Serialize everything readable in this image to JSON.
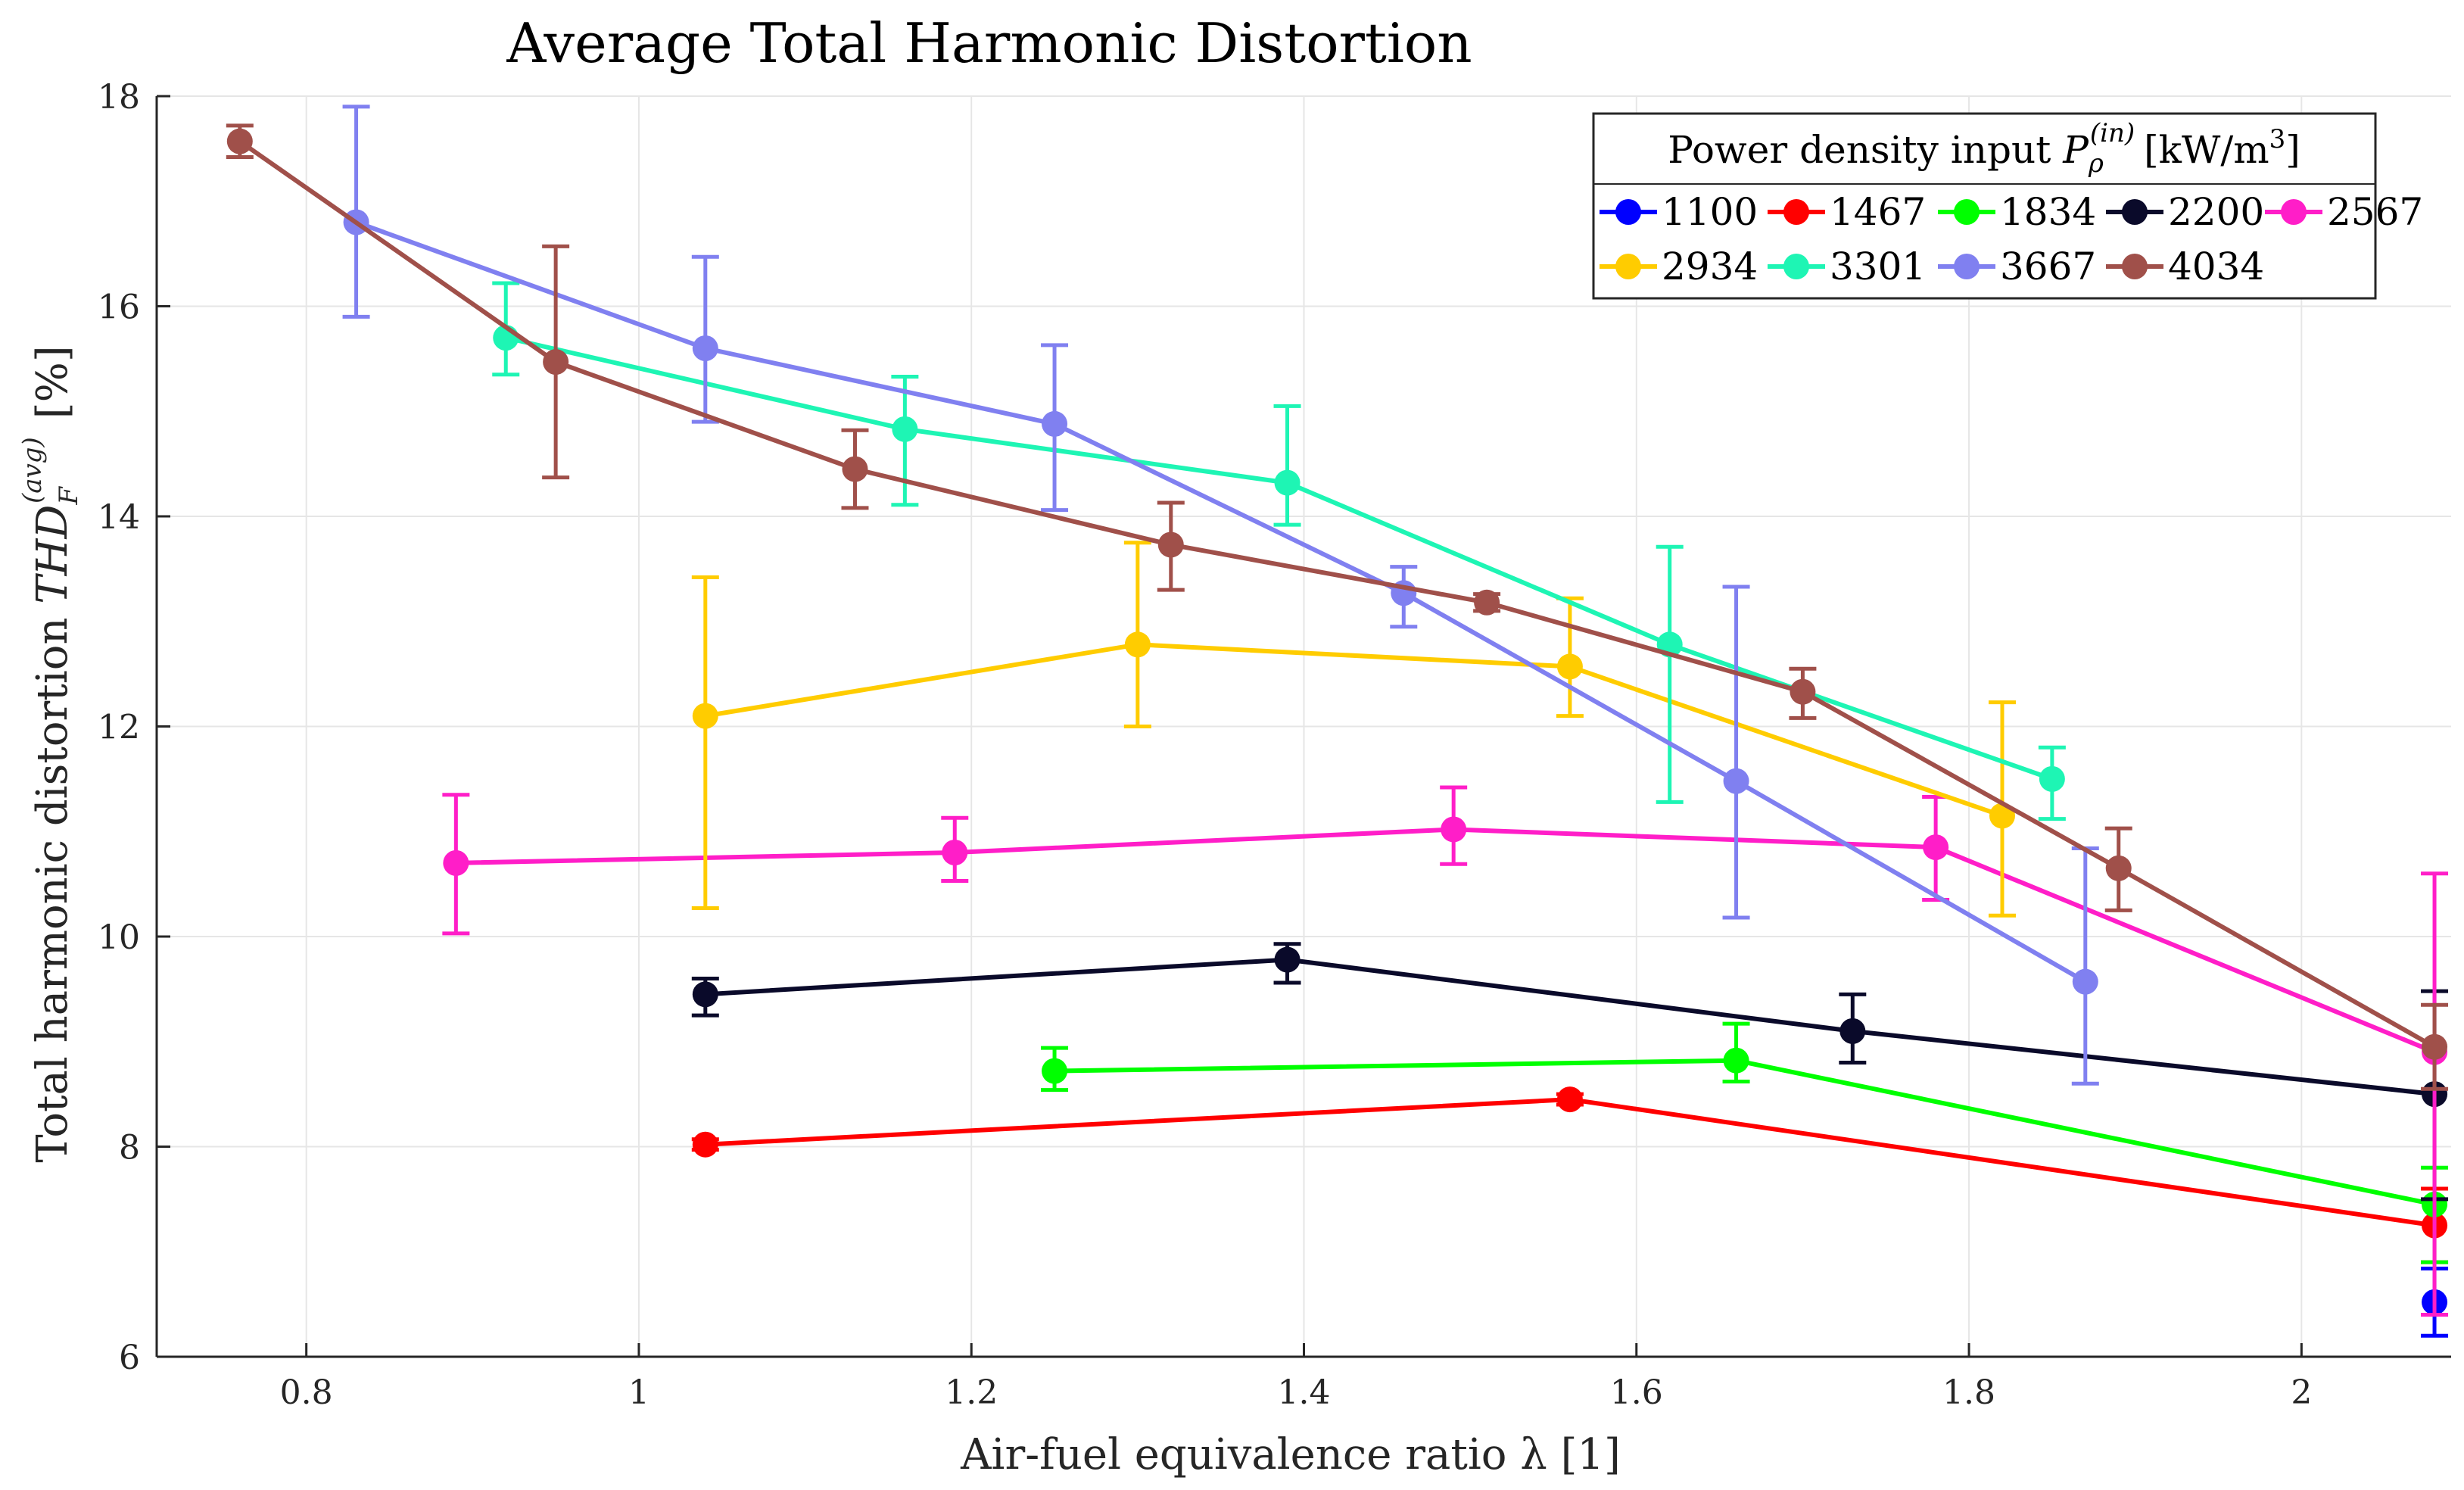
{
  "chart_data": {
    "type": "line",
    "title": "Average Total Harmonic Distortion",
    "xlabel": "Air-fuel equivalence ratio λ [1]",
    "ylabel": {
      "text": "Total harmonic distortion ",
      "symbol": "THD",
      "subscript": "F",
      "superscript": "(avg)",
      "unit": "[%]"
    },
    "xlim": [
      0.71,
      2.09
    ],
    "ylim": [
      6,
      18
    ],
    "xticks": [
      0.8,
      1,
      1.2,
      1.4,
      1.6,
      1.8,
      2
    ],
    "xtick_labels": [
      "0.8",
      "1",
      "1.2",
      "1.4",
      "1.6",
      "1.8",
      "2"
    ],
    "yticks": [
      6,
      8,
      10,
      12,
      14,
      16,
      18
    ],
    "ytick_labels": [
      "6",
      "8",
      "10",
      "12",
      "14",
      "16",
      "18"
    ],
    "grid": true,
    "legend": {
      "title": {
        "text": "Power density input ",
        "symbol": "P",
        "subscript": "ρ",
        "superscript": "(in)",
        "unit": "[kW/m",
        "unit_sup": "3",
        "unit_close": "]"
      },
      "placement": "top-right",
      "columns": 5
    },
    "series": [
      {
        "name": "1100",
        "color": "#0000ff",
        "x": [
          2.08
        ],
        "y": [
          6.52
        ],
        "err_low": [
          0.32
        ],
        "err_high": [
          0.32
        ]
      },
      {
        "name": "1467",
        "color": "#ff0000",
        "x": [
          1.04,
          1.56,
          2.08
        ],
        "y": [
          8.02,
          8.45,
          7.25
        ],
        "err_low": [
          0.05,
          0.05,
          0.35
        ],
        "err_high": [
          0.05,
          0.05,
          0.35
        ]
      },
      {
        "name": "1834",
        "color": "#00ff00",
        "x": [
          1.25,
          1.66,
          2.08
        ],
        "y": [
          8.72,
          8.82,
          7.45
        ],
        "err_low": [
          0.18,
          0.2,
          0.55
        ],
        "err_high": [
          0.22,
          0.35,
          0.35
        ]
      },
      {
        "name": "2200",
        "color": "#0a0a2a",
        "x": [
          1.04,
          1.39,
          1.73,
          2.08
        ],
        "y": [
          9.45,
          9.78,
          9.1,
          8.5
        ],
        "err_low": [
          0.2,
          0.22,
          0.3,
          1.0
        ],
        "err_high": [
          0.15,
          0.15,
          0.35,
          0.98
        ]
      },
      {
        "name": "2567",
        "color": "#ff1ec8",
        "x": [
          0.89,
          1.19,
          1.49,
          1.78,
          2.08
        ],
        "y": [
          10.7,
          10.8,
          11.02,
          10.85,
          8.9
        ],
        "err_low": [
          0.67,
          0.27,
          0.33,
          0.5,
          2.5
        ],
        "err_high": [
          0.65,
          0.33,
          0.4,
          0.48,
          1.7
        ]
      },
      {
        "name": "2934",
        "color": "#ffcc00",
        "x": [
          1.04,
          1.3,
          1.56,
          1.82
        ],
        "y": [
          12.1,
          12.78,
          12.57,
          11.15
        ],
        "err_low": [
          1.83,
          0.78,
          0.47,
          0.95
        ],
        "err_high": [
          1.32,
          0.97,
          0.65,
          1.08
        ]
      },
      {
        "name": "3301",
        "color": "#1ef5b4",
        "x": [
          0.92,
          1.16,
          1.39,
          1.62,
          1.85
        ],
        "y": [
          15.7,
          14.83,
          14.32,
          12.78,
          11.5
        ],
        "err_low": [
          0.35,
          0.72,
          0.4,
          1.5,
          0.38
        ],
        "err_high": [
          0.52,
          0.5,
          0.73,
          0.93,
          0.3
        ]
      },
      {
        "name": "3667",
        "color": "#8080f0",
        "x": [
          0.83,
          1.04,
          1.25,
          1.46,
          1.66,
          1.87
        ],
        "y": [
          16.8,
          15.6,
          14.88,
          13.27,
          11.48,
          9.57
        ],
        "err_low": [
          0.9,
          0.7,
          0.82,
          0.32,
          1.3,
          0.97
        ],
        "err_high": [
          1.1,
          0.87,
          0.75,
          0.25,
          1.85,
          1.27
        ]
      },
      {
        "name": "4034",
        "color": "#a0504a",
        "x": [
          0.76,
          0.95,
          1.13,
          1.32,
          1.51,
          1.7,
          1.89,
          2.08
        ],
        "y": [
          17.57,
          15.47,
          14.45,
          13.73,
          13.18,
          12.33,
          10.65,
          8.95
        ],
        "err_low": [
          0.15,
          1.1,
          0.37,
          0.43,
          0.08,
          0.25,
          0.4,
          0.4
        ],
        "err_high": [
          0.15,
          1.1,
          0.37,
          0.4,
          0.08,
          0.22,
          0.38,
          0.4
        ]
      }
    ]
  }
}
